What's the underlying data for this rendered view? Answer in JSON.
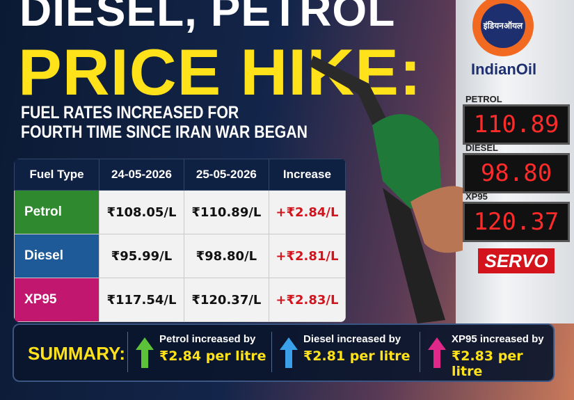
{
  "headline": {
    "line1": "DIESEL, PETROL",
    "line2": "PRICE HIKE:",
    "subtitle1": "FUEL RATES INCREASED FOR",
    "subtitle2": "FOURTH TIME SINCE IRAN WAR BEGAN"
  },
  "table": {
    "header": [
      "Fuel Type",
      "24-05-2026",
      "25-05-2026",
      "Increase"
    ],
    "rows": [
      [
        "Petrol",
        "₹108.05/L",
        "₹110.89/L",
        "+₹2.84/L"
      ],
      [
        "Diesel",
        "₹95.99/L",
        "₹98.80/L",
        "+₹2.81/L"
      ],
      [
        "XP95",
        "₹117.54/L",
        "₹120.37/L",
        "+₹2.83/L"
      ]
    ]
  },
  "summary": {
    "label": "SUMMARY:",
    "items": [
      {
        "text": "Petrol increased by",
        "amount": "₹2.84 per litre"
      },
      {
        "text": "Diesel increased by",
        "amount": "₹2.81 per litre"
      },
      {
        "text": "XP95 increased by",
        "amount": "₹2.83 per litre"
      }
    ]
  },
  "sign": {
    "logo_hindi": "इंडियनऑयल",
    "logo": "IndianOil",
    "boards": [
      {
        "label": "PETROL",
        "price": "110.89"
      },
      {
        "label": "DIESEL",
        "price": "98.80"
      },
      {
        "label": "XP95",
        "price": "120.37"
      }
    ],
    "brand": "SERVO"
  }
}
